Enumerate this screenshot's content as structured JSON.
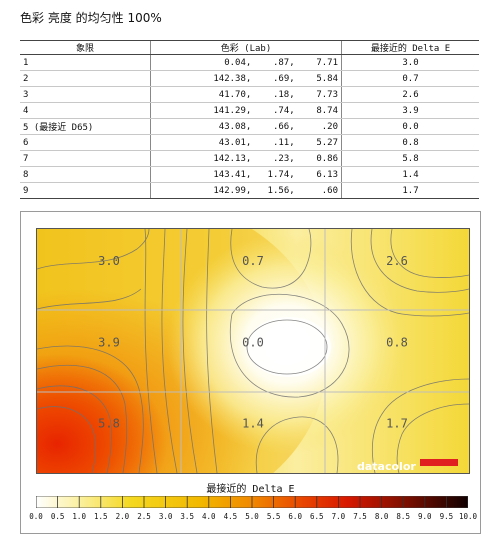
{
  "title": "色彩 亮度 的均匀性 100%",
  "table": {
    "headers": [
      "象限",
      "色彩 (Lab)",
      "最接近的 Delta E"
    ],
    "rows": [
      {
        "quadrant": "1",
        "lab": "0.04,    .87,    7.71",
        "de": "3.0"
      },
      {
        "quadrant": "2",
        "lab": "142.38,    .69,    5.84",
        "de": "0.7"
      },
      {
        "quadrant": "3",
        "lab": "41.70,    .18,    7.73",
        "de": "2.6"
      },
      {
        "quadrant": "4",
        "lab": "141.29,    .74,    8.74",
        "de": "3.9"
      },
      {
        "quadrant": "5 (最接近 D65)",
        "lab": "43.08,    .66,     .20",
        "de": "0.0"
      },
      {
        "quadrant": "6",
        "lab": "43.01,    .11,    5.27",
        "de": "0.8"
      },
      {
        "quadrant": "7",
        "lab": "142.13,    .23,    0.86",
        "de": "5.8"
      },
      {
        "quadrant": "8",
        "lab": "143.41,   1.74,    6.13",
        "de": "1.4"
      },
      {
        "quadrant": "9",
        "lab": "142.99,   1.56,     .60",
        "de": "1.7"
      }
    ]
  },
  "chart_data": {
    "type": "heatmap",
    "grid": [
      3,
      3
    ],
    "values": [
      [
        3.0,
        0.7,
        2.6
      ],
      [
        3.9,
        0.0,
        0.8
      ],
      [
        5.8,
        1.4,
        1.7
      ]
    ],
    "labels": [
      [
        "3.0",
        "0.7",
        "2.6"
      ],
      [
        "3.9",
        "0.0",
        "0.8"
      ],
      [
        "5.8",
        "1.4",
        "1.7"
      ]
    ],
    "color_scale_label": "最接近的 Delta E",
    "scale_range": [
      0,
      10
    ],
    "scale_ticks": [
      "0.0",
      "0.5",
      "1.0",
      "1.5",
      "2.0",
      "2.5",
      "3.0",
      "3.5",
      "4.0",
      "4.5",
      "5.0",
      "5.5",
      "6.0",
      "6.5",
      "7.0",
      "7.5",
      "8.0",
      "8.5",
      "9.0",
      "9.5",
      "10.0"
    ],
    "colors": {
      "low": "#ffffff",
      "yellow": "#f0d000",
      "orange": "#f08000",
      "red": "#e02000",
      "dark": "#200000"
    }
  },
  "brand": "datacolor"
}
